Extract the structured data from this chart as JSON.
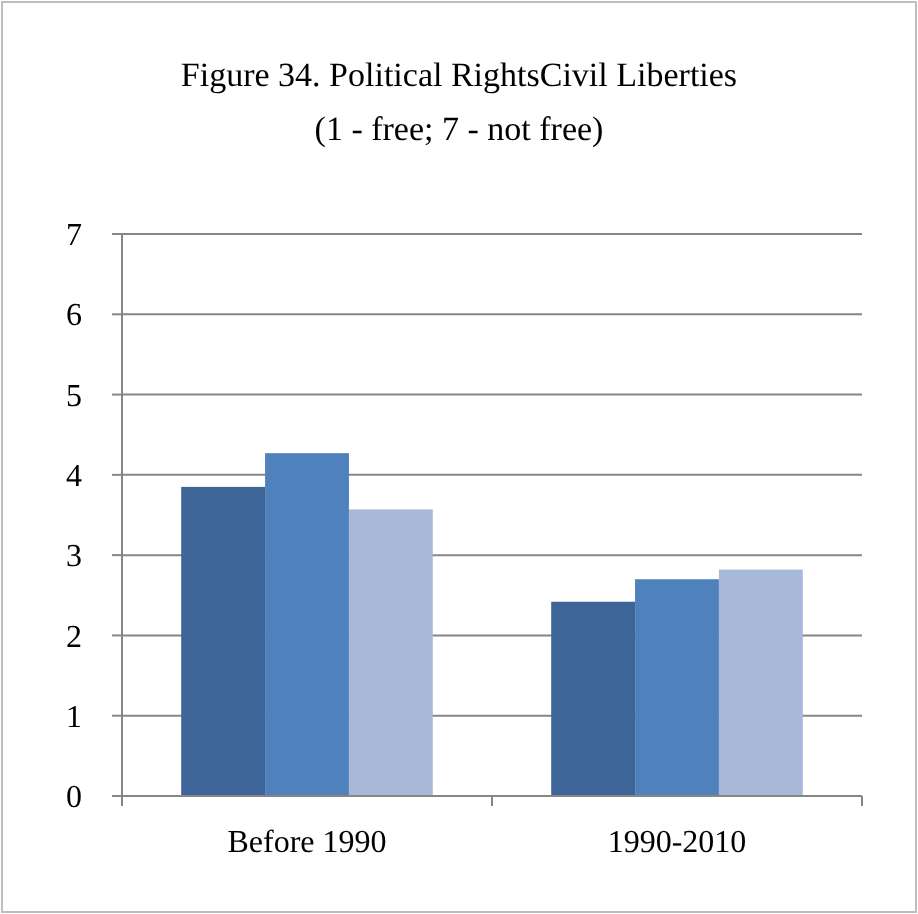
{
  "chart_data": {
    "type": "bar",
    "title": "Figure 34. Political RightsCivil Liberties",
    "subtitle": "(1 - free; 7 - not free)",
    "categories": [
      "Before 1990",
      "1990-2010"
    ],
    "series": [
      {
        "color": "#3e6598",
        "values": [
          3.85,
          2.42
        ]
      },
      {
        "color": "#4f81bd",
        "values": [
          4.27,
          2.7
        ]
      },
      {
        "color": "#a8b8d8",
        "values": [
          3.57,
          2.82
        ]
      }
    ],
    "ylim": [
      0,
      7
    ],
    "yticks": [
      0,
      1,
      2,
      3,
      4,
      5,
      6,
      7
    ],
    "grid": "y"
  }
}
